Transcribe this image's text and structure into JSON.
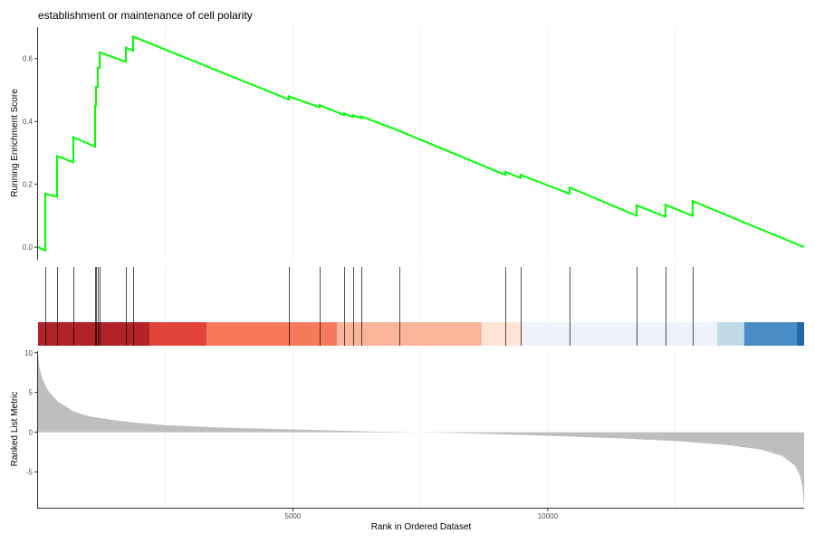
{
  "chart_data": {
    "type": "line",
    "title": "establishment or maintenance of cell polarity",
    "xlabel": "Rank in Ordered Dataset",
    "xlim": [
      0,
      15030
    ],
    "x_ticks": [
      5000,
      10000
    ],
    "x_tick_labels": [
      "5000",
      "10000"
    ],
    "grid_x": [
      2500,
      5000,
      7500,
      10000,
      12500
    ],
    "es_panel": {
      "ylabel": "Running Enrichment Score",
      "ylim": [
        -0.04,
        0.7
      ],
      "y_ticks": [
        0.0,
        0.2,
        0.4,
        0.6
      ],
      "y_tick_labels": [
        "0.0",
        "0.2",
        "0.4",
        "0.6"
      ],
      "color": "#00FF00",
      "points": [
        [
          0,
          0
        ],
        [
          142,
          -0.01
        ],
        [
          142,
          0.17
        ],
        [
          373,
          0.16
        ],
        [
          373,
          0.29
        ],
        [
          693,
          0.27
        ],
        [
          693,
          0.35
        ],
        [
          1119,
          0.32
        ],
        [
          1119,
          0.45
        ],
        [
          1137,
          0.45
        ],
        [
          1137,
          0.51
        ],
        [
          1172,
          0.51
        ],
        [
          1172,
          0.57
        ],
        [
          1208,
          0.57
        ],
        [
          1208,
          0.62
        ],
        [
          1723,
          0.59
        ],
        [
          1723,
          0.635
        ],
        [
          1865,
          0.625
        ],
        [
          1865,
          0.67
        ],
        [
          4920,
          0.47
        ],
        [
          4920,
          0.48
        ],
        [
          5524,
          0.445
        ],
        [
          5524,
          0.452
        ],
        [
          6004,
          0.42
        ],
        [
          6004,
          0.426
        ],
        [
          6181,
          0.414
        ],
        [
          6181,
          0.42
        ],
        [
          6341,
          0.41
        ],
        [
          6341,
          0.416
        ],
        [
          7087,
          0.37
        ],
        [
          9165,
          0.23
        ],
        [
          9165,
          0.24
        ],
        [
          9467,
          0.22
        ],
        [
          9467,
          0.23
        ],
        [
          10426,
          0.17
        ],
        [
          10426,
          0.19
        ],
        [
          11741,
          0.1
        ],
        [
          11741,
          0.133
        ],
        [
          12309,
          0.097
        ],
        [
          12309,
          0.135
        ],
        [
          12842,
          0.1
        ],
        [
          12842,
          0.147
        ],
        [
          15030,
          0.0
        ]
      ]
    },
    "hits": [
      142,
      373,
      693,
      1119,
      1137,
      1172,
      1208,
      1723,
      1865,
      4920,
      5524,
      6004,
      6181,
      6341,
      7087,
      9165,
      9467,
      10426,
      11741,
      12309,
      12842
    ],
    "color_bands": [
      {
        "from": 0,
        "to": 2185,
        "color": "#AF2329"
      },
      {
        "from": 2185,
        "to": 3304,
        "color": "#E2443B"
      },
      {
        "from": 3304,
        "to": 5862,
        "color": "#F6795B"
      },
      {
        "from": 5862,
        "to": 8703,
        "color": "#F9B49A"
      },
      {
        "from": 8703,
        "to": 9503,
        "color": "#FCE4D7"
      },
      {
        "from": 9503,
        "to": 13321,
        "color": "#EEF3FB"
      },
      {
        "from": 13321,
        "to": 13854,
        "color": "#C2DAE8"
      },
      {
        "from": 13854,
        "to": 14884,
        "color": "#4A8CC5"
      },
      {
        "from": 14884,
        "to": 15030,
        "color": "#2267AB"
      }
    ],
    "metric_panel": {
      "ylabel": "Ranked List Metric",
      "ylim": [
        -9.5,
        10.2
      ],
      "y_ticks": [
        10,
        5,
        0,
        -5
      ],
      "y_tick_labels": [
        "10",
        "5",
        "0",
        "-5"
      ],
      "color": "#BEBEBE",
      "points": [
        [
          0,
          10
        ],
        [
          30,
          8
        ],
        [
          100,
          6.5
        ],
        [
          200,
          5.2
        ],
        [
          400,
          3.8
        ],
        [
          700,
          2.6
        ],
        [
          1000,
          2.0
        ],
        [
          1500,
          1.5
        ],
        [
          2000,
          1.15
        ],
        [
          2500,
          0.9
        ],
        [
          3500,
          0.6
        ],
        [
          5000,
          0.35
        ],
        [
          6500,
          0.1
        ],
        [
          7500,
          0
        ],
        [
          8500,
          -0.15
        ],
        [
          10000,
          -0.45
        ],
        [
          11500,
          -0.8
        ],
        [
          12500,
          -1.1
        ],
        [
          13500,
          -1.6
        ],
        [
          14200,
          -2.2
        ],
        [
          14600,
          -3.0
        ],
        [
          14850,
          -4.2
        ],
        [
          14950,
          -5.5
        ],
        [
          15000,
          -7
        ],
        [
          15030,
          -9.5
        ]
      ]
    }
  }
}
